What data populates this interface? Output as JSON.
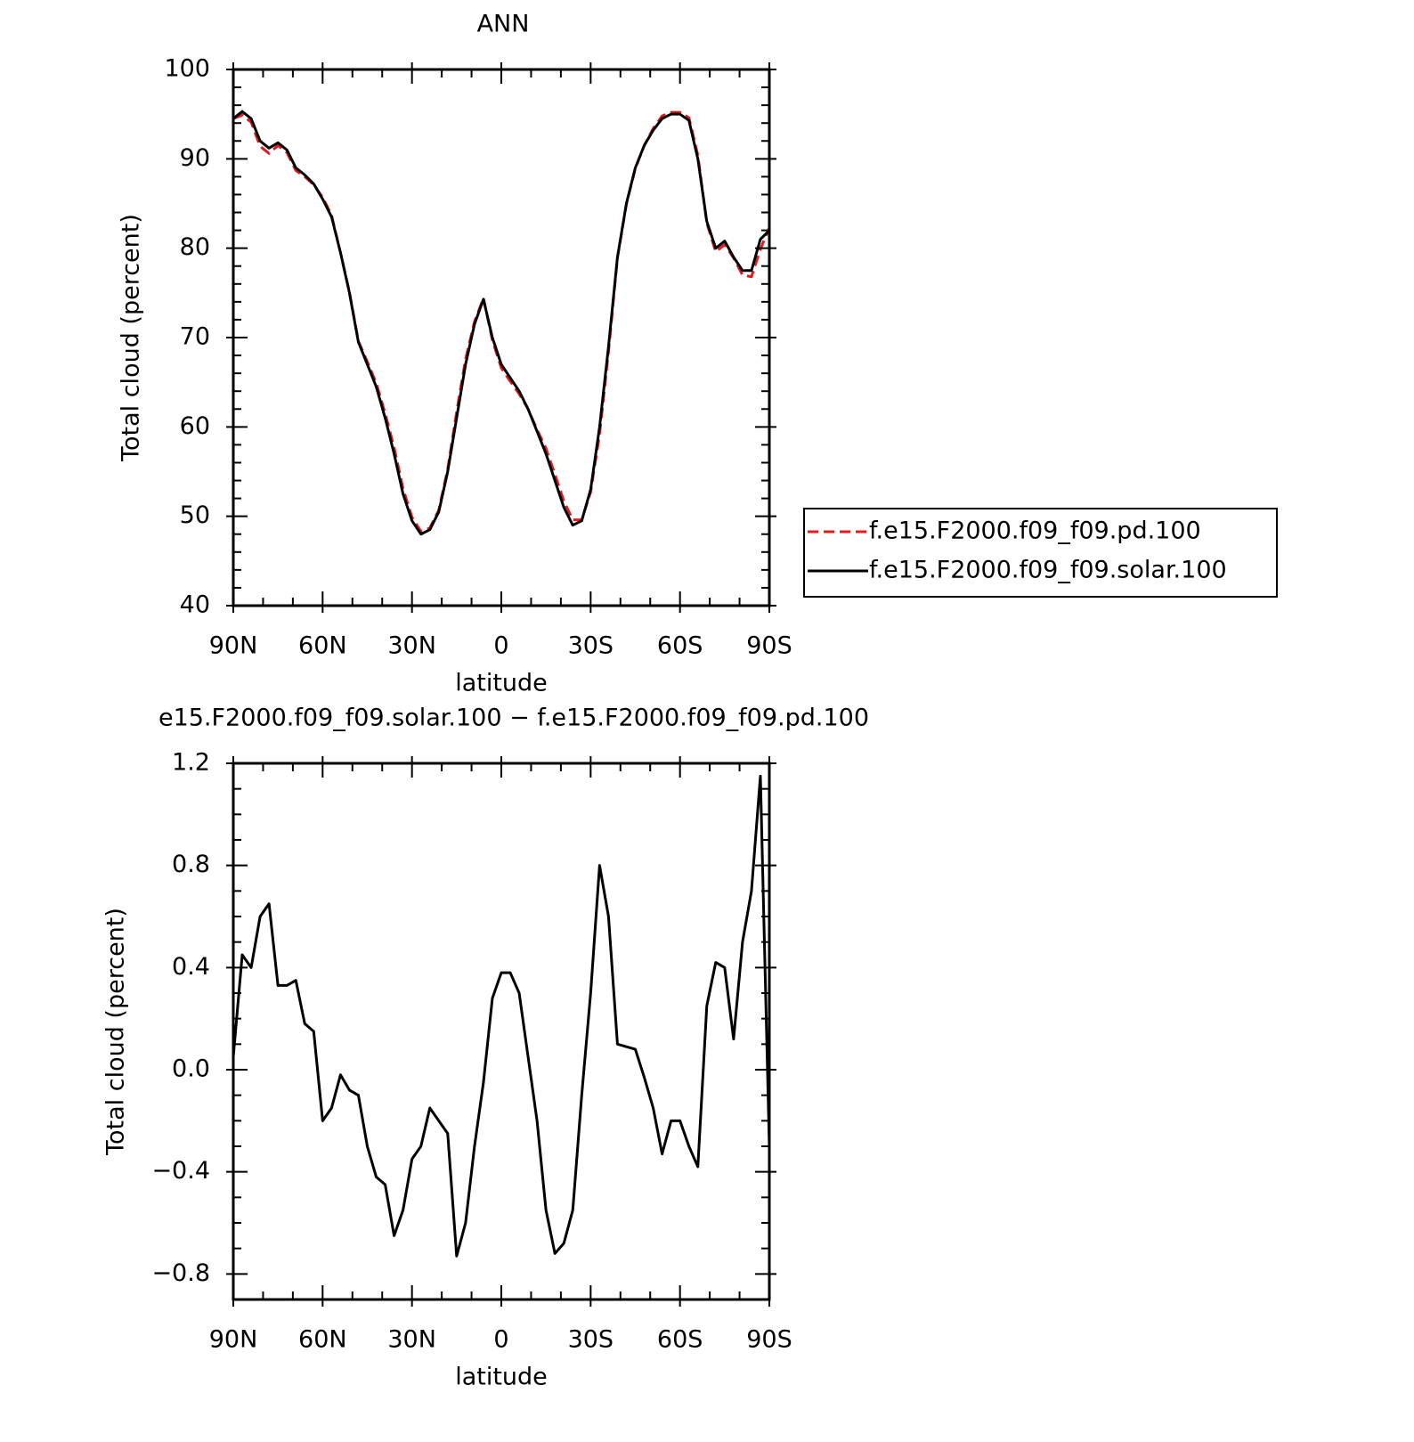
{
  "chart_data": [
    {
      "type": "line",
      "title": "ANN",
      "x_label": "latitude",
      "y_label": "Total cloud (percent)",
      "x": [
        90,
        87,
        84,
        81,
        78,
        75,
        72,
        69,
        66,
        63,
        60,
        57,
        54,
        51,
        48,
        45,
        42,
        39,
        36,
        33,
        30,
        27,
        24,
        21,
        18,
        15,
        12,
        9,
        6,
        3,
        0,
        -3,
        -6,
        -9,
        -12,
        -15,
        -18,
        -21,
        -24,
        -27,
        -30,
        -33,
        -36,
        -39,
        -42,
        -45,
        -48,
        -51,
        -54,
        -57,
        -60,
        -63,
        -66,
        -69,
        -72,
        -75,
        -78,
        -81,
        -84,
        -87,
        -90
      ],
      "series": [
        {
          "name": "f.e15.F2000.f09_f09.pd.100",
          "color": "#e41a1c",
          "line_style": "dashed",
          "values": [
            94.5,
            94.9,
            94.1,
            91.4,
            90.6,
            91.5,
            90.7,
            88.7,
            88.0,
            87.1,
            85.7,
            83.7,
            79.5,
            75.1,
            69.6,
            67.3,
            64.9,
            61.5,
            57.7,
            53.1,
            49.9,
            48.3,
            48.7,
            50.7,
            55.3,
            61.7,
            67.6,
            71.8,
            74.4,
            69.7,
            66.6,
            65.1,
            63.7,
            62.0,
            59.7,
            57.6,
            54.7,
            51.7,
            49.6,
            49.6,
            52.7,
            59.2,
            68.4,
            78.9,
            84.9,
            88.9,
            91.5,
            93.4,
            94.8,
            95.2,
            95.2,
            94.6,
            90.4,
            82.8,
            79.6,
            80.4,
            78.9,
            77.0,
            76.8,
            79.9,
            82.3
          ]
        },
        {
          "name": "f.e15.F2000.f09_f09.solar.100",
          "color": "#000000",
          "line_style": "solid",
          "values": [
            94.5,
            95.3,
            94.5,
            92,
            91.2,
            91.8,
            91,
            89,
            88.2,
            87.2,
            85.5,
            83.5,
            79.5,
            75,
            69.5,
            67,
            64.5,
            61,
            57,
            52.5,
            49.5,
            48,
            48.5,
            50.5,
            55,
            61,
            67,
            71.5,
            74.3,
            70,
            67,
            65.5,
            64,
            62,
            59.5,
            57,
            54,
            51,
            49,
            49.5,
            53,
            60,
            69,
            79,
            85,
            89,
            91.5,
            93.2,
            94.5,
            95,
            95,
            94.3,
            90,
            83,
            80,
            80.8,
            79,
            77.5,
            77.5,
            81,
            82
          ]
        }
      ],
      "xlim": [
        90,
        -90
      ],
      "xticks": [
        {
          "value": 90,
          "label": "90N"
        },
        {
          "value": 60,
          "label": "60N"
        },
        {
          "value": 30,
          "label": "30N"
        },
        0,
        {
          "value": -30,
          "label": "30S"
        },
        {
          "value": -60,
          "label": "60S"
        },
        {
          "value": -90,
          "label": "90S"
        }
      ],
      "ylim": [
        40,
        100
      ],
      "yticks": [
        40,
        50,
        60,
        70,
        80,
        90,
        100
      ],
      "legend": "right"
    },
    {
      "type": "line",
      "title": "e15.F2000.f09_f09.solar.100 − f.e15.F2000.f09_f09.pd.100",
      "x_label": "latitude",
      "y_label": "Total cloud (percent)",
      "x": [
        90,
        87,
        84,
        81,
        78,
        75,
        72,
        69,
        66,
        63,
        60,
        57,
        54,
        51,
        48,
        45,
        42,
        39,
        36,
        33,
        30,
        27,
        24,
        21,
        18,
        15,
        12,
        9,
        6,
        3,
        0,
        -3,
        -6,
        -9,
        -12,
        -15,
        -18,
        -21,
        -24,
        -27,
        -30,
        -33,
        -36,
        -39,
        -42,
        -45,
        -48,
        -51,
        -54,
        -57,
        -60,
        -63,
        -66,
        -69,
        -72,
        -75,
        -78,
        -81,
        -84,
        -87,
        -90
      ],
      "series": [
        {
          "color": "#000000",
          "line_style": "solid",
          "values": [
            0.05,
            0.45,
            0.4,
            0.6,
            0.65,
            0.33,
            0.33,
            0.35,
            0.18,
            0.15,
            -0.2,
            -0.15,
            -0.02,
            -0.08,
            -0.1,
            -0.3,
            -0.42,
            -0.45,
            -0.65,
            -0.55,
            -0.35,
            -0.3,
            -0.15,
            -0.2,
            -0.25,
            -0.73,
            -0.6,
            -0.3,
            -0.05,
            0.28,
            0.38,
            0.38,
            0.3,
            0.05,
            -0.2,
            -0.55,
            -0.72,
            -0.68,
            -0.55,
            -0.1,
            0.3,
            0.8,
            0.6,
            0.1,
            0.09,
            0.08,
            -0.03,
            -0.15,
            -0.33,
            -0.2,
            -0.2,
            -0.3,
            -0.38,
            0.25,
            0.42,
            0.4,
            0.12,
            0.5,
            0.7,
            1.15,
            -0.3
          ]
        }
      ],
      "xlim": [
        90,
        -90
      ],
      "xticks": [
        {
          "value": 90,
          "label": "90N"
        },
        {
          "value": 60,
          "label": "60N"
        },
        {
          "value": 30,
          "label": "30N"
        },
        0,
        {
          "value": -30,
          "label": "30S"
        },
        {
          "value": -60,
          "label": "60S"
        },
        {
          "value": -90,
          "label": "90S"
        }
      ],
      "ylim": [
        -0.9,
        1.2
      ],
      "yticks": [
        {
          "value": -0.8,
          "label": "−0.8"
        },
        {
          "value": -0.4,
          "label": "−0.4"
        },
        {
          "value": 0,
          "label": "0.0"
        },
        0.4,
        0.8,
        1.2
      ]
    }
  ]
}
